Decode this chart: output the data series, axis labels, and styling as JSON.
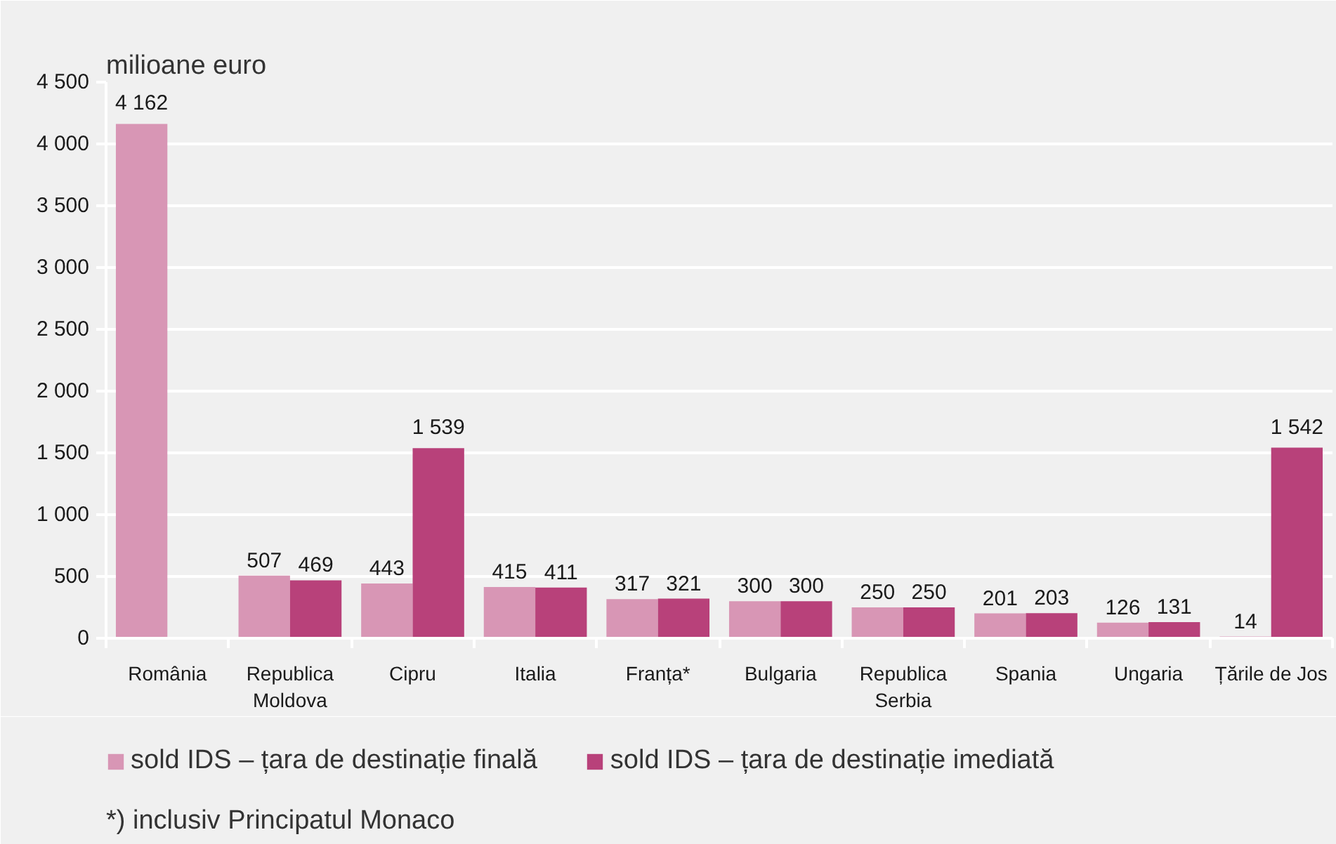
{
  "chart_data": {
    "type": "bar",
    "ylabel": "milioane euro",
    "categories": [
      "România",
      "Republica Moldova",
      "Cipru",
      "Italia",
      "Franța*",
      "Bulgaria",
      "Republica Serbia",
      "Spania",
      "Ungaria",
      "Țările de Jos"
    ],
    "series": [
      {
        "name": "sold IDS – țara de destinație finală",
        "color": "#d896b5",
        "values": [
          4162,
          507,
          443,
          415,
          317,
          300,
          250,
          201,
          126,
          14
        ],
        "value_labels": [
          "4 162",
          "507",
          "443",
          "415",
          "317",
          "300",
          "250",
          "201",
          "126",
          "14"
        ]
      },
      {
        "name": "sold IDS – țara de destinație imediată",
        "color": "#b8417a",
        "values": [
          null,
          469,
          1539,
          411,
          321,
          300,
          250,
          203,
          131,
          1542
        ],
        "value_labels": [
          null,
          "469",
          "1 539",
          "411",
          "321",
          "300",
          "250",
          "203",
          "131",
          "1 542"
        ]
      }
    ],
    "ylim": [
      0,
      4500
    ],
    "yticks": [
      0,
      500,
      {
        "value": 1000,
        "label": "1 000"
      },
      {
        "value": 1500,
        "label": "1 500"
      },
      {
        "value": 2000,
        "label": "2 000"
      },
      {
        "value": 2500,
        "label": "2 500"
      },
      {
        "value": 3000,
        "label": "3 000"
      },
      {
        "value": 3500,
        "label": "3 500"
      },
      {
        "value": 4000,
        "label": "4 000"
      },
      {
        "value": 4500,
        "label": "4 500"
      }
    ],
    "grid": "y",
    "legend": "bottom",
    "annotations": [
      "*) inclusiv Principatul Monaco"
    ]
  }
}
